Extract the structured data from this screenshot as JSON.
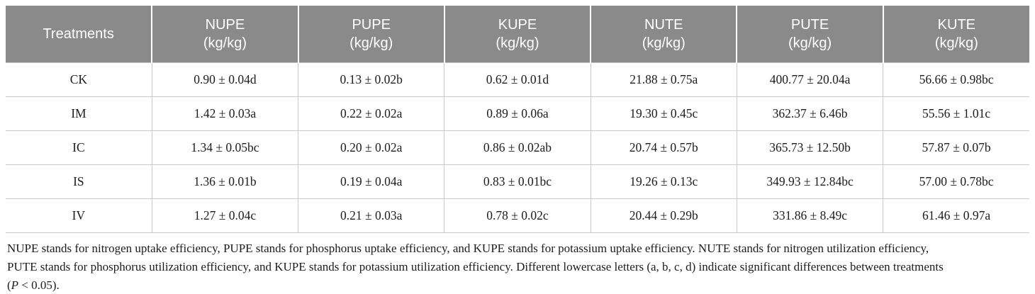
{
  "table": {
    "headers": [
      {
        "line1": "Treatments",
        "line2": ""
      },
      {
        "line1": "NUPE",
        "line2": "(kg/kg)"
      },
      {
        "line1": "PUPE",
        "line2": "(kg/kg)"
      },
      {
        "line1": "KUPE",
        "line2": "(kg/kg)"
      },
      {
        "line1": "NUTE",
        "line2": "(kg/kg)"
      },
      {
        "line1": "PUTE",
        "line2": "(kg/kg)"
      },
      {
        "line1": "KUTE",
        "line2": "(kg/kg)"
      }
    ],
    "rows": [
      {
        "cells": [
          "CK",
          "0.90 ± 0.04d",
          "0.13 ± 0.02b",
          "0.62 ± 0.01d",
          "21.88 ± 0.75a",
          "400.77 ± 20.04a",
          "56.66 ± 0.98bc"
        ]
      },
      {
        "cells": [
          "IM",
          "1.42 ± 0.03a",
          "0.22 ± 0.02a",
          "0.89 ± 0.06a",
          "19.30 ± 0.45c",
          "362.37 ± 6.46b",
          "55.56 ± 1.01c"
        ]
      },
      {
        "cells": [
          "IC",
          "1.34 ± 0.05bc",
          "0.20 ± 0.02a",
          "0.86 ± 0.02ab",
          "20.74 ± 0.57b",
          "365.73 ± 12.50b",
          "57.87 ± 0.07b"
        ]
      },
      {
        "cells": [
          "IS",
          "1.36 ± 0.01b",
          "0.19 ± 0.04a",
          "0.83 ± 0.01bc",
          "19.26 ± 0.13c",
          "349.93 ± 12.84bc",
          "57.00 ± 0.78bc"
        ]
      },
      {
        "cells": [
          "IV",
          "1.27 ± 0.04c",
          "0.21 ± 0.03a",
          "0.78 ± 0.02c",
          "20.44 ± 0.29b",
          "331.86 ± 8.49c",
          "61.46 ± 0.97a"
        ]
      }
    ]
  },
  "footnote": {
    "line1": "NUPE stands for nitrogen uptake efficiency, PUPE stands for phosphorus uptake efficiency, and KUPE stands for potassium uptake efficiency. NUTE stands for nitrogen utilization efficiency,",
    "line2": "PUTE stands for phosphorus utilization efficiency, and KUPE stands for potassium utilization efficiency. Different lowercase letters (a, b, c, d) indicate significant differences between treatments",
    "line3_pre": "(",
    "line3_italic": "P",
    "line3_post": " < 0.05)."
  },
  "colors": {
    "header_bg": "#8a8a8a",
    "header_text": "#ffffff",
    "border": "#c9c9c9"
  }
}
